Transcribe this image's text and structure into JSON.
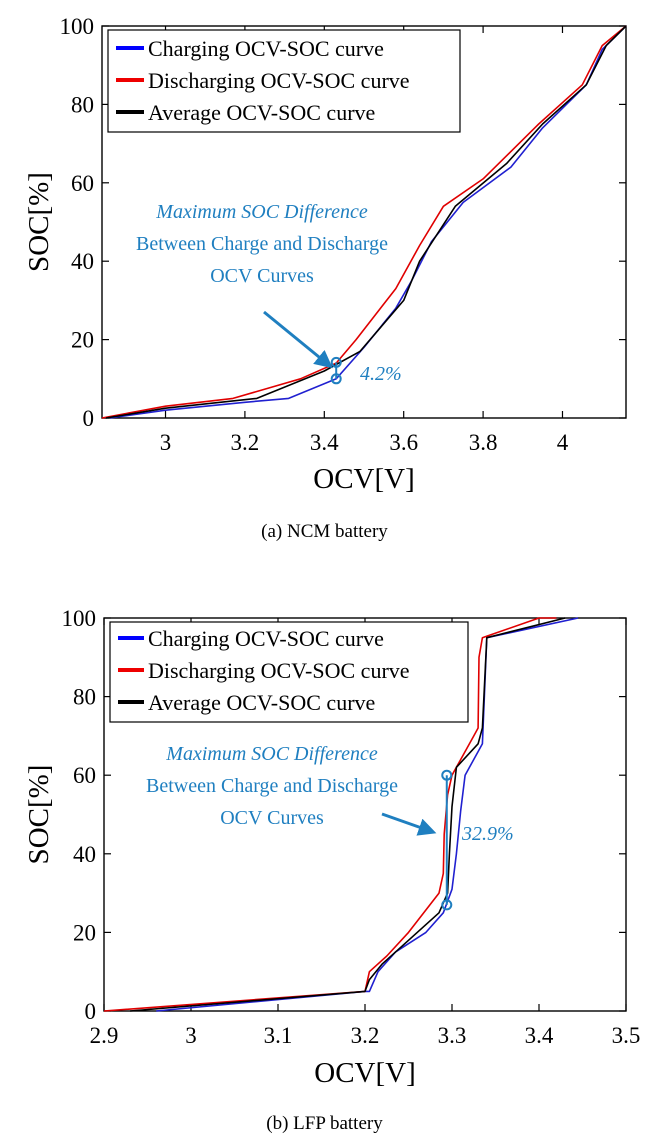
{
  "captions": {
    "panel_a": "(a)  NCM  battery",
    "panel_b": "(b)  LFP  battery"
  },
  "chart_data": [
    {
      "type": "line",
      "panel": "a",
      "xlabel": "OCV[V]",
      "ylabel": "SOC[%]",
      "xlim": [
        2.84,
        4.16
      ],
      "ylim": [
        0,
        100
      ],
      "xticks": [
        3,
        3.2,
        3.4,
        3.6,
        3.8,
        4
      ],
      "xtick_labels": [
        "3",
        "3.2",
        "3.4",
        "3.6",
        "3.8",
        "4"
      ],
      "yticks": [
        0,
        20,
        40,
        60,
        80,
        100
      ],
      "ytick_labels": [
        "0",
        "20",
        "40",
        "60",
        "80",
        "100"
      ],
      "grid": false,
      "legend_position": "top-left",
      "series": [
        {
          "name": "Charging OCV-SOC curve",
          "color": "#2020d0",
          "legend_color": "#0000ff",
          "x": [
            2.86,
            3.0,
            3.2,
            3.31,
            3.43,
            3.5,
            3.58,
            3.62,
            3.67,
            3.75,
            3.87,
            3.95,
            4.06,
            4.1,
            4.16
          ],
          "y": [
            0,
            2,
            4,
            5,
            10,
            18,
            28,
            35,
            45,
            55,
            64,
            74,
            85,
            94,
            100
          ]
        },
        {
          "name": "Discharging OCV-SOC curve",
          "color": "#e00000",
          "legend_color": "#ee0000",
          "x": [
            2.84,
            3.0,
            3.17,
            3.34,
            3.43,
            3.48,
            3.58,
            3.64,
            3.7,
            3.8,
            3.94,
            4.05,
            4.1,
            4.16
          ],
          "y": [
            0,
            3,
            5,
            10,
            14,
            20,
            33,
            44,
            54,
            61,
            75,
            85,
            95,
            100
          ]
        },
        {
          "name": "Average OCV-SOC curve",
          "color": "#000000",
          "legend_color": "#000000",
          "x": [
            2.85,
            3.0,
            3.23,
            3.4,
            3.49,
            3.6,
            3.64,
            3.73,
            3.86,
            3.95,
            4.06,
            4.11,
            4.16
          ],
          "y": [
            0,
            2.5,
            5,
            12,
            17,
            30,
            40,
            54,
            65,
            75,
            85,
            95,
            100
          ]
        }
      ],
      "annotation": {
        "lines": [
          "Maximum SOC Difference",
          "Between Charge and Discharge",
          "OCV Curves"
        ],
        "value_label": "4.2%",
        "color": "#1f7fc0",
        "marker_x": 3.43,
        "marker_y_low": 10,
        "marker_y_high": 14.2
      }
    },
    {
      "type": "line",
      "panel": "b",
      "xlabel": "OCV[V]",
      "ylabel": "SOC[%]",
      "xlim": [
        2.9,
        3.5
      ],
      "ylim": [
        0,
        100
      ],
      "xticks": [
        2.9,
        3.0,
        3.1,
        3.2,
        3.3,
        3.4,
        3.5
      ],
      "xtick_labels": [
        "2.9",
        "3",
        "3.1",
        "3.2",
        "3.3",
        "3.4",
        "3.5"
      ],
      "yticks": [
        0,
        20,
        40,
        60,
        80,
        100
      ],
      "ytick_labels": [
        "0",
        "20",
        "40",
        "60",
        "80",
        "100"
      ],
      "grid": false,
      "legend_position": "top-left",
      "series": [
        {
          "name": "Charging OCV-SOC curve",
          "color": "#2020d0",
          "legend_color": "#0000ff",
          "x": [
            2.96,
            3.2,
            3.205,
            3.215,
            3.235,
            3.27,
            3.29,
            3.3,
            3.305,
            3.31,
            3.315,
            3.33,
            3.335,
            3.34,
            3.445
          ],
          "y": [
            0,
            5,
            5,
            10,
            15,
            20,
            25,
            31,
            40,
            51,
            60,
            66,
            68,
            95,
            100
          ]
        },
        {
          "name": "Discharging OCV-SOC curve",
          "color": "#e00000",
          "legend_color": "#ee0000",
          "x": [
            2.9,
            3.2,
            3.205,
            3.225,
            3.25,
            3.285,
            3.29,
            3.291,
            3.295,
            3.3,
            3.325,
            3.33,
            3.331,
            3.335,
            3.4,
            3.42
          ],
          "y": [
            0,
            5,
            10,
            14,
            20,
            30,
            35,
            45,
            55,
            60,
            70,
            72,
            90,
            95,
            100,
            100
          ]
        },
        {
          "name": "Average OCV-SOC curve",
          "color": "#000000",
          "legend_color": "#000000",
          "x": [
            2.93,
            3.2,
            3.205,
            3.22,
            3.245,
            3.285,
            3.295,
            3.297,
            3.3,
            3.305,
            3.33,
            3.335,
            3.34,
            3.43
          ],
          "y": [
            0,
            5,
            8,
            12,
            17,
            25,
            30,
            40,
            52,
            62,
            68,
            72,
            95,
            100
          ]
        }
      ],
      "annotation": {
        "lines": [
          "Maximum SOC Difference",
          "Between Charge and Discharge",
          "OCV Curves"
        ],
        "value_label": "32.9%",
        "color": "#1f7fc0",
        "marker_x": 3.294,
        "marker_y_low": 27,
        "marker_y_high": 60
      }
    }
  ]
}
